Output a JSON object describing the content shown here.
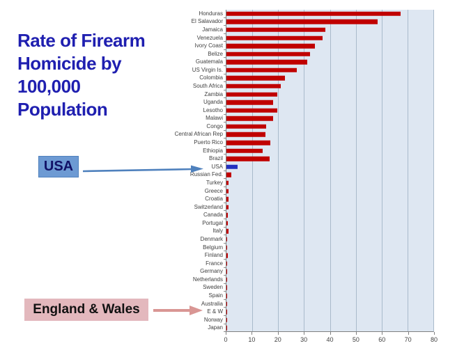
{
  "title": {
    "lines": [
      "Rate of Firearm",
      "Homicide by",
      "100,000",
      "Population"
    ],
    "color": "#1F1FB0"
  },
  "callouts": {
    "usa": {
      "label": "USA",
      "box_fill": "#6D9AD3",
      "box_border": "#4F81BD",
      "text_color": "#111166",
      "arrow_color": "#4F81BD"
    },
    "england_wales": {
      "label": "England & Wales",
      "box_fill": "#E3B8BD",
      "arrow_color": "#D99694"
    }
  },
  "chart_data": {
    "type": "bar",
    "orientation": "horizontal",
    "title": "Rate of Firearm Homicide by 100,000 Population",
    "categories": [
      "Honduras",
      "El Salavador",
      "Jamaica",
      "Venezuela",
      "Ivory Coast",
      "Belize",
      "Guatemala",
      "US Virgin Is.",
      "Colombia",
      "South Africa",
      "Zambia",
      "Uganda",
      "Lesotho",
      "Malawi",
      "Congo",
      "Central African Rep",
      "Puerto Rico",
      "Ethiopia",
      "Brazil",
      "USA",
      "Russian Fed.",
      "Turkey",
      "Greece",
      "Croatia",
      "Switzerland",
      "Canada",
      "Portugal",
      "Italy",
      "Denmark",
      "Belgium",
      "Finland",
      "France",
      "Germany",
      "Netherlands",
      "Sweden",
      "Spain",
      "Australia",
      "E & W",
      "Norway",
      "Japan"
    ],
    "values": [
      67,
      58,
      38,
      37,
      34,
      32,
      31,
      27,
      22.5,
      21,
      19.5,
      18,
      19.5,
      18,
      15.3,
      15,
      16.8,
      13.8,
      16.5,
      4.3,
      2,
      0.8,
      0.7,
      0.7,
      0.8,
      0.6,
      0.6,
      0.7,
      0.4,
      0.4,
      0.5,
      0.3,
      0.3,
      0.4,
      0.3,
      0.3,
      0.25,
      0.2,
      0.15,
      0.1
    ],
    "xlabel": "",
    "ylabel": "",
    "xlim": [
      0,
      80
    ],
    "x_ticks": [
      0,
      10,
      20,
      30,
      40,
      50,
      60,
      70,
      80
    ],
    "grid": true,
    "legend": "none",
    "bar_color": "#C00000",
    "highlight_category": "USA",
    "highlight_color": "#2230C0",
    "plot_bg": "#DEE7F2"
  }
}
